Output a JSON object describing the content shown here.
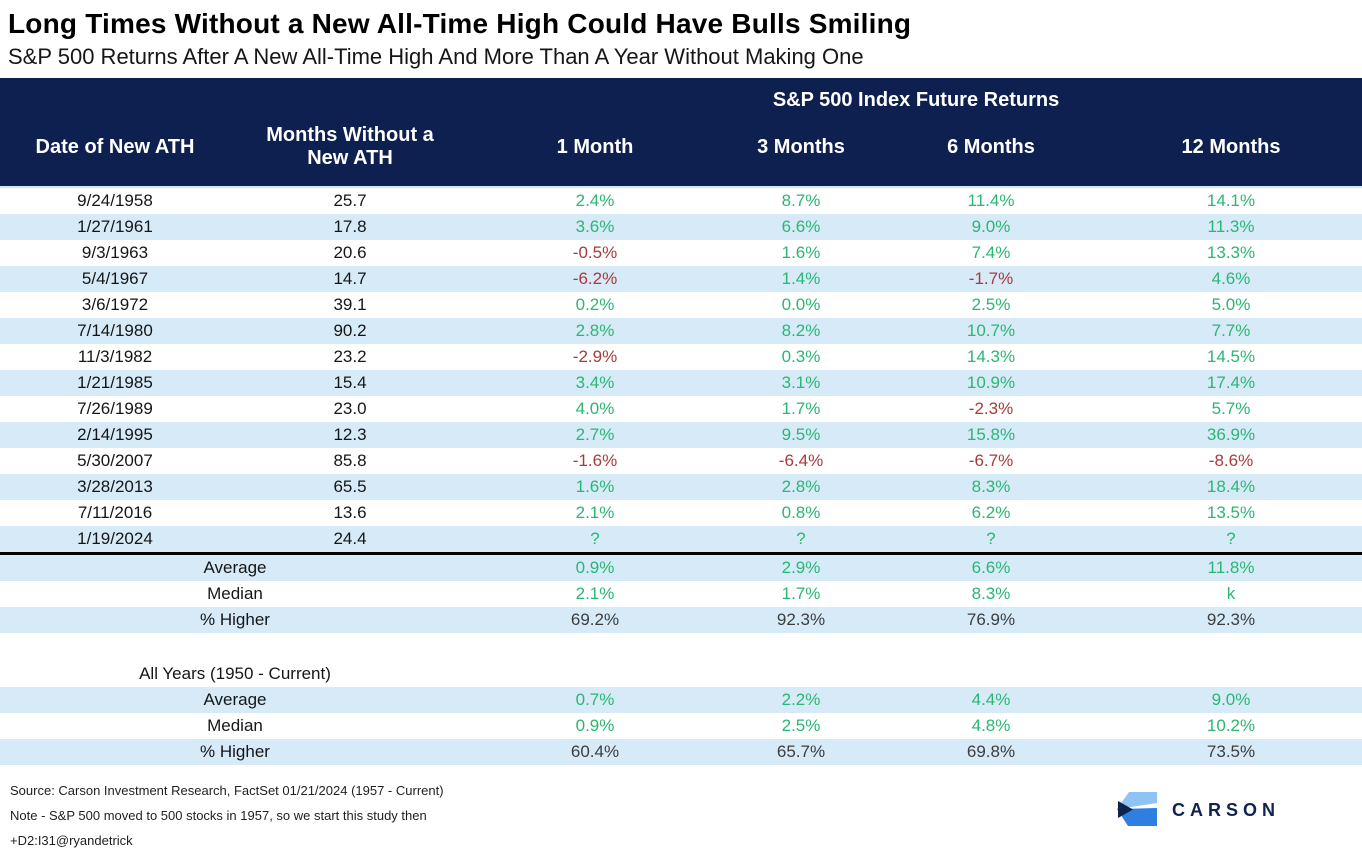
{
  "chart_data": {
    "type": "table",
    "title": "Long Times Without a New All-Time High Could Have Bulls Smiling",
    "subtitle": "S&P 500 Returns After A New All-Time High And More Than A Year Without Making One",
    "group_header": "S&P 500 Index Future Returns",
    "columns": [
      "Date of New ATH",
      "Months Without a New ATH",
      "1 Month",
      "3 Months",
      "6 Months",
      "12 Months"
    ],
    "rows": [
      [
        "9/24/1958",
        "25.7",
        "2.4%",
        "8.7%",
        "11.4%",
        "14.1%"
      ],
      [
        "1/27/1961",
        "17.8",
        "3.6%",
        "6.6%",
        "9.0%",
        "11.3%"
      ],
      [
        "9/3/1963",
        "20.6",
        "-0.5%",
        "1.6%",
        "7.4%",
        "13.3%"
      ],
      [
        "5/4/1967",
        "14.7",
        "-6.2%",
        "1.4%",
        "-1.7%",
        "4.6%"
      ],
      [
        "3/6/1972",
        "39.1",
        "0.2%",
        "0.0%",
        "2.5%",
        "5.0%"
      ],
      [
        "7/14/1980",
        "90.2",
        "2.8%",
        "8.2%",
        "10.7%",
        "7.7%"
      ],
      [
        "11/3/1982",
        "23.2",
        "-2.9%",
        "0.3%",
        "14.3%",
        "14.5%"
      ],
      [
        "1/21/1985",
        "15.4",
        "3.4%",
        "3.1%",
        "10.9%",
        "17.4%"
      ],
      [
        "7/26/1989",
        "23.0",
        "4.0%",
        "1.7%",
        "-2.3%",
        "5.7%"
      ],
      [
        "2/14/1995",
        "12.3",
        "2.7%",
        "9.5%",
        "15.8%",
        "36.9%"
      ],
      [
        "5/30/2007",
        "85.8",
        "-1.6%",
        "-6.4%",
        "-6.7%",
        "-8.6%"
      ],
      [
        "3/28/2013",
        "65.5",
        "1.6%",
        "2.8%",
        "8.3%",
        "18.4%"
      ],
      [
        "7/11/2016",
        "13.6",
        "2.1%",
        "0.8%",
        "6.2%",
        "13.5%"
      ],
      [
        "1/19/2024",
        "24.4",
        "?",
        "?",
        "?",
        "?"
      ]
    ],
    "summary": [
      {
        "label": "Average",
        "values": [
          "0.9%",
          "2.9%",
          "6.6%",
          "11.8%"
        ],
        "value_style": "positive"
      },
      {
        "label": "Median",
        "values": [
          "2.1%",
          "1.7%",
          "8.3%",
          "k"
        ],
        "value_style": "positive"
      },
      {
        "label": "% Higher",
        "values": [
          "69.2%",
          "92.3%",
          "76.9%",
          "92.3%"
        ],
        "value_style": "neutral"
      }
    ],
    "all_years": {
      "label": "All Years (1950 - Current)",
      "rows": [
        {
          "label": "Average",
          "values": [
            "0.7%",
            "2.2%",
            "4.4%",
            "9.0%"
          ],
          "value_style": "positive"
        },
        {
          "label": "Median",
          "values": [
            "0.9%",
            "2.5%",
            "4.8%",
            "10.2%"
          ],
          "value_style": "positive"
        },
        {
          "label": "% Higher",
          "values": [
            "60.4%",
            "65.7%",
            "69.8%",
            "73.5%"
          ],
          "value_style": "neutral"
        }
      ]
    }
  },
  "footer": {
    "source": "Source: Carson Investment Research, FactSet 01/21/2024 (1957 - Current)",
    "note": "Note - S&P 500 moved to 500 stocks in 1957, so we start this study then",
    "tag": "+D2:I31@ryandetrick"
  },
  "logo": {
    "text": "CARSON"
  },
  "colors": {
    "header_navy": "#0E2050",
    "row_alt": "#D6EAF8",
    "positive_green": "#2BB673",
    "negative_red": "#A93A3A",
    "neutral_dark": "#3D3D3D",
    "logo_light_blue": "#8FC3F5",
    "logo_mid_blue": "#2E7FE0",
    "logo_navy": "#10234E"
  }
}
